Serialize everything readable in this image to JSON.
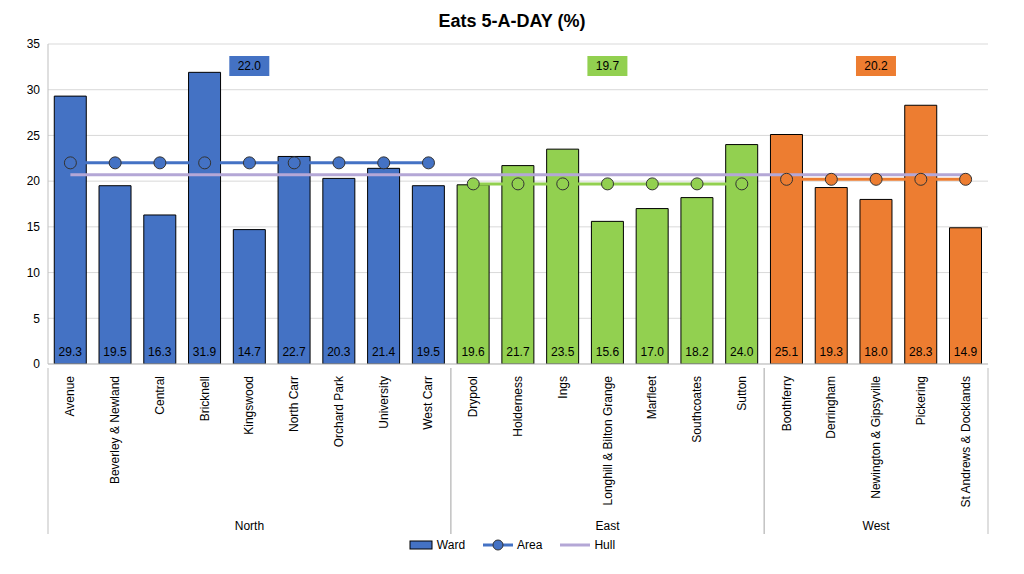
{
  "chart_data": {
    "type": "bar",
    "title": "Eats 5-A-DAY (%)",
    "categories": [
      "Avenue",
      "Beverley & Newland",
      "Central",
      "Bricknell",
      "Kingswood",
      "North Carr",
      "Orchard Park",
      "University",
      "West Carr",
      "Drypool",
      "Holderness",
      "Ings",
      "Longhill & Bilton Grange",
      "Marfleet",
      "Southcoates",
      "Sutton",
      "Boothferry",
      "Derringham",
      "Newington & Gipsyville",
      "Pickering",
      "St Andrews & Docklands"
    ],
    "groups": [
      "North",
      "North",
      "North",
      "North",
      "North",
      "North",
      "North",
      "North",
      "North",
      "East",
      "East",
      "East",
      "East",
      "East",
      "East",
      "East",
      "West",
      "West",
      "West",
      "West",
      "West"
    ],
    "series": [
      {
        "name": "Ward",
        "type": "bar",
        "data_labels": true,
        "values": [
          29.3,
          19.5,
          16.3,
          31.9,
          14.7,
          22.7,
          20.3,
          21.4,
          19.5,
          19.6,
          21.7,
          23.5,
          15.6,
          17.0,
          18.2,
          24.0,
          25.1,
          19.3,
          18.0,
          28.3,
          14.9
        ],
        "value_labels": [
          "29.3",
          "19.5",
          "16.3",
          "31.9",
          "14.7",
          "22.7",
          "20.3",
          "21.4",
          "19.5",
          "19.6",
          "21.7",
          "23.5",
          "15.6",
          "17.0",
          "18.2",
          "24.0",
          "25.1",
          "19.3",
          "18.0",
          "28.3",
          "14.9"
        ],
        "colors": [
          "#4472c4",
          "#4472c4",
          "#4472c4",
          "#4472c4",
          "#4472c4",
          "#4472c4",
          "#4472c4",
          "#4472c4",
          "#4472c4",
          "#92d050",
          "#92d050",
          "#92d050",
          "#92d050",
          "#92d050",
          "#92d050",
          "#92d050",
          "#ed7d31",
          "#ed7d31",
          "#ed7d31",
          "#ed7d31",
          "#ed7d31"
        ]
      },
      {
        "name": "Area",
        "type": "line",
        "marker": "circle",
        "values": [
          22.0,
          22.0,
          22.0,
          22.0,
          22.0,
          22.0,
          22.0,
          22.0,
          22.0,
          19.7,
          19.7,
          19.7,
          19.7,
          19.7,
          19.7,
          19.7,
          20.2,
          20.2,
          20.2,
          20.2,
          20.2
        ],
        "colors": [
          "#4472c4",
          "#4472c4",
          "#4472c4",
          "#4472c4",
          "#4472c4",
          "#4472c4",
          "#4472c4",
          "#4472c4",
          "#4472c4",
          "#92d050",
          "#92d050",
          "#92d050",
          "#92d050",
          "#92d050",
          "#92d050",
          "#92d050",
          "#ed7d31",
          "#ed7d31",
          "#ed7d31",
          "#ed7d31",
          "#ed7d31"
        ]
      },
      {
        "name": "Hull",
        "type": "line",
        "color": "#b4a7d6",
        "values": [
          20.7,
          20.7,
          20.7,
          20.7,
          20.7,
          20.7,
          20.7,
          20.7,
          20.7,
          20.7,
          20.7,
          20.7,
          20.7,
          20.7,
          20.7,
          20.7,
          20.7,
          20.7,
          20.7,
          20.7,
          20.7
        ]
      }
    ],
    "annotations": [
      {
        "text": "22.0",
        "group": "North"
      },
      {
        "text": "19.7",
        "group": "East"
      },
      {
        "text": "20.2",
        "group": "West"
      }
    ],
    "ylim": [
      0,
      35
    ],
    "yticks": [
      0,
      5,
      10,
      15,
      20,
      25,
      30,
      35
    ],
    "grid": true
  }
}
